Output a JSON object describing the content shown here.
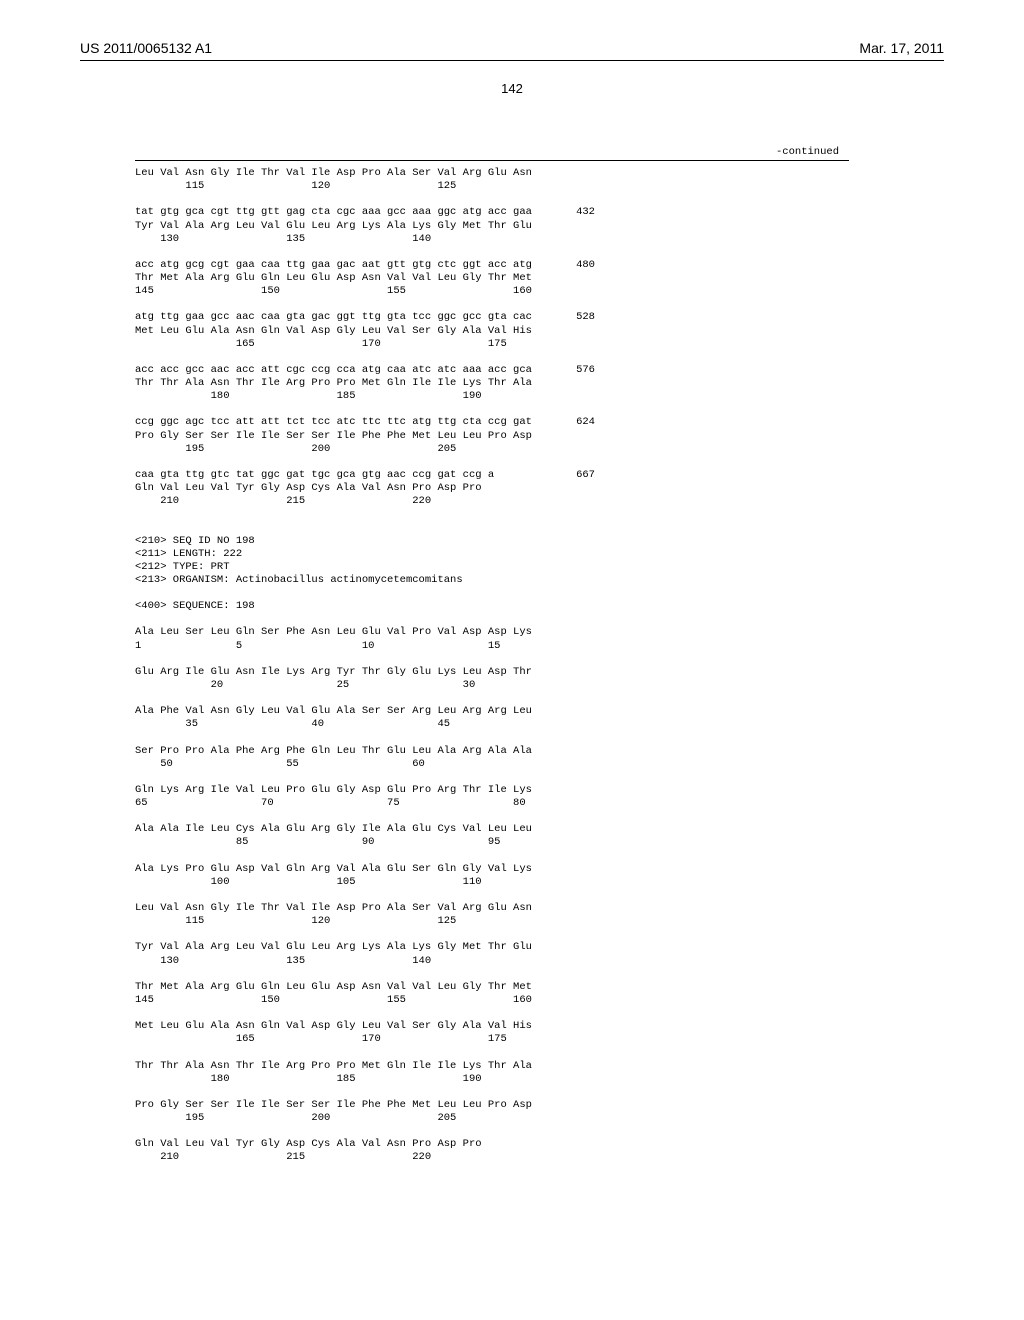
{
  "header": {
    "pub_number": "US 2011/0065132 A1",
    "date": "Mar. 17, 2011"
  },
  "page_number": "142",
  "continued_label": "-continued",
  "seq1": {
    "rows": [
      {
        "aa": "Leu Val Asn Gly Ile Thr Val Ile Asp Pro Ala Ser Val Arg Glu Asn",
        "pos": "        115                 120                 125"
      },
      {
        "nt": "tat gtg gca cgt ttg gtt gag cta cgc aaa gcc aaa ggc atg acc gaa",
        "num": "432",
        "aa": "Tyr Val Ala Arg Leu Val Glu Leu Arg Lys Ala Lys Gly Met Thr Glu",
        "pos": "    130                 135                 140"
      },
      {
        "nt": "acc atg gcg cgt gaa caa ttg gaa gac aat gtt gtg ctc ggt acc atg",
        "num": "480",
        "aa": "Thr Met Ala Arg Glu Gln Leu Glu Asp Asn Val Val Leu Gly Thr Met",
        "pos": "145                 150                 155                 160"
      },
      {
        "nt": "atg ttg gaa gcc aac caa gta gac ggt ttg gta tcc ggc gcc gta cac",
        "num": "528",
        "aa": "Met Leu Glu Ala Asn Gln Val Asp Gly Leu Val Ser Gly Ala Val His",
        "pos": "                165                 170                 175"
      },
      {
        "nt": "acc acc gcc aac acc att cgc ccg cca atg caa atc atc aaa acc gca",
        "num": "576",
        "aa": "Thr Thr Ala Asn Thr Ile Arg Pro Pro Met Gln Ile Ile Lys Thr Ala",
        "pos": "            180                 185                 190"
      },
      {
        "nt": "ccg ggc agc tcc att att tct tcc atc ttc ttc atg ttg cta ccg gat",
        "num": "624",
        "aa": "Pro Gly Ser Ser Ile Ile Ser Ser Ile Phe Phe Met Leu Leu Pro Asp",
        "pos": "        195                 200                 205"
      },
      {
        "nt": "caa gta ttg gtc tat ggc gat tgc gca gtg aac ccg gat ccg a",
        "num": "667",
        "aa": "Gln Val Leu Val Tyr Gly Asp Cys Ala Val Asn Pro Asp Pro",
        "pos": "    210                 215                 220"
      }
    ]
  },
  "meta": {
    "line1": "<210> SEQ ID NO 198",
    "line2": "<211> LENGTH: 222",
    "line3": "<212> TYPE: PRT",
    "line4": "<213> ORGANISM: Actinobacillus actinomycetemcomitans",
    "line5": "<400> SEQUENCE: 198"
  },
  "seq2": {
    "rows": [
      {
        "aa": "Ala Leu Ser Leu Gln Ser Phe Asn Leu Glu Val Pro Val Asp Asp Lys",
        "pos": "1               5                   10                  15"
      },
      {
        "aa": "Glu Arg Ile Glu Asn Ile Lys Arg Tyr Thr Gly Glu Lys Leu Asp Thr",
        "pos": "            20                  25                  30"
      },
      {
        "aa": "Ala Phe Val Asn Gly Leu Val Glu Ala Ser Ser Arg Leu Arg Arg Leu",
        "pos": "        35                  40                  45"
      },
      {
        "aa": "Ser Pro Pro Ala Phe Arg Phe Gln Leu Thr Glu Leu Ala Arg Ala Ala",
        "pos": "    50                  55                  60"
      },
      {
        "aa": "Gln Lys Arg Ile Val Leu Pro Glu Gly Asp Glu Pro Arg Thr Ile Lys",
        "pos": "65                  70                  75                  80"
      },
      {
        "aa": "Ala Ala Ile Leu Cys Ala Glu Arg Gly Ile Ala Glu Cys Val Leu Leu",
        "pos": "                85                  90                  95"
      },
      {
        "aa": "Ala Lys Pro Glu Asp Val Gln Arg Val Ala Glu Ser Gln Gly Val Lys",
        "pos": "            100                 105                 110"
      },
      {
        "aa": "Leu Val Asn Gly Ile Thr Val Ile Asp Pro Ala Ser Val Arg Glu Asn",
        "pos": "        115                 120                 125"
      },
      {
        "aa": "Tyr Val Ala Arg Leu Val Glu Leu Arg Lys Ala Lys Gly Met Thr Glu",
        "pos": "    130                 135                 140"
      },
      {
        "aa": "Thr Met Ala Arg Glu Gln Leu Glu Asp Asn Val Val Leu Gly Thr Met",
        "pos": "145                 150                 155                 160"
      },
      {
        "aa": "Met Leu Glu Ala Asn Gln Val Asp Gly Leu Val Ser Gly Ala Val His",
        "pos": "                165                 170                 175"
      },
      {
        "aa": "Thr Thr Ala Asn Thr Ile Arg Pro Pro Met Gln Ile Ile Lys Thr Ala",
        "pos": "            180                 185                 190"
      },
      {
        "aa": "Pro Gly Ser Ser Ile Ile Ser Ser Ile Phe Phe Met Leu Leu Pro Asp",
        "pos": "        195                 200                 205"
      },
      {
        "aa": "Gln Val Leu Val Tyr Gly Asp Cys Ala Val Asn Pro Asp Pro",
        "pos": "    210                 215                 220"
      }
    ]
  }
}
